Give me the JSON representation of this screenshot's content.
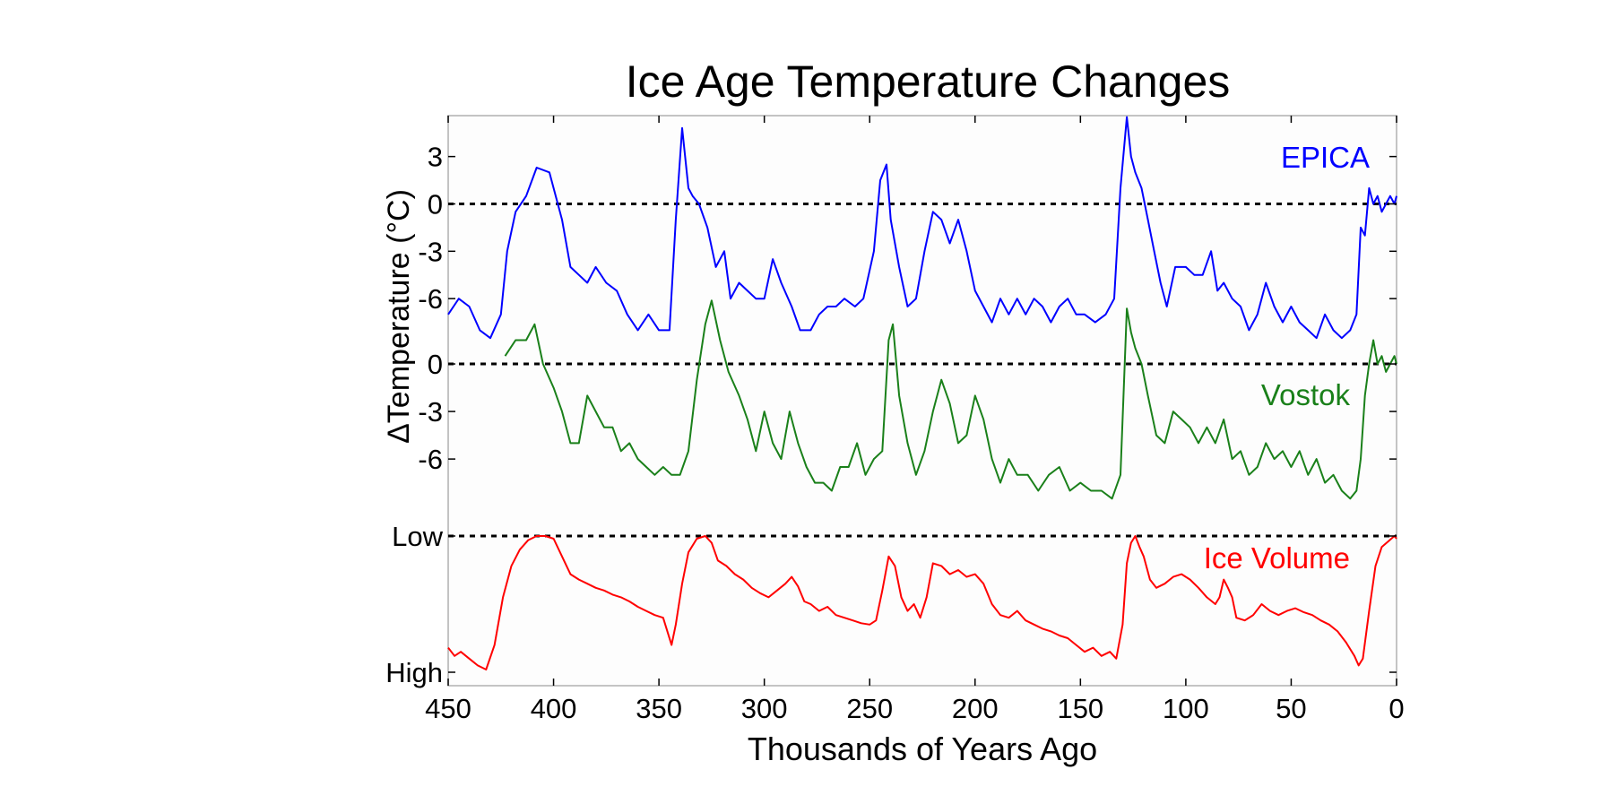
{
  "chart_data": {
    "type": "line",
    "title": "Ice Age Temperature Changes",
    "xlabel": "Thousands of Years Ago",
    "ylabel": "ΔTemperature (°C)",
    "xlim": [
      450,
      0
    ],
    "x_ticks": [
      450,
      400,
      350,
      300,
      250,
      200,
      150,
      100,
      50,
      0
    ],
    "panels": [
      {
        "name": "EPICA",
        "color": "#0000ff",
        "unit": "°C",
        "ylim": [
          -9,
          6.5
        ],
        "tick_values": [
          3,
          0,
          -3,
          -6
        ],
        "tick_labels": [
          "3",
          "0",
          "-3",
          "-6"
        ],
        "reference": 0,
        "x": [
          450,
          445,
          440,
          435,
          430,
          425,
          422,
          418,
          413,
          408,
          402,
          396,
          392,
          388,
          384,
          380,
          375,
          370,
          365,
          360,
          355,
          350,
          345,
          342,
          339,
          336,
          334,
          331,
          327,
          323,
          319,
          316,
          312,
          308,
          304,
          300,
          296,
          292,
          287,
          283,
          278,
          274,
          270,
          266,
          262,
          257,
          253,
          248,
          245,
          242,
          240,
          236,
          232,
          228,
          224,
          220,
          216,
          212,
          208,
          204,
          200,
          196,
          192,
          188,
          184,
          180,
          176,
          172,
          168,
          164,
          160,
          156,
          152,
          148,
          143,
          138,
          134,
          131,
          128,
          126,
          124,
          121,
          118,
          115,
          112,
          109,
          105,
          100,
          96,
          92,
          88,
          85,
          82,
          78,
          74,
          70,
          66,
          62,
          58,
          54,
          50,
          46,
          42,
          38,
          34,
          30,
          26,
          22,
          19,
          17,
          15,
          13,
          11,
          9,
          7,
          5,
          3,
          1,
          0
        ],
        "values": [
          -7,
          -6,
          -6.5,
          -8,
          -8.5,
          -7,
          -3,
          -0.5,
          0.5,
          2.3,
          2,
          -1,
          -4,
          -4.5,
          -5,
          -4,
          -5,
          -5.5,
          -7,
          -8,
          -7,
          -8,
          -8,
          -1,
          4.8,
          1,
          0.5,
          0,
          -1.5,
          -4,
          -3,
          -6,
          -5,
          -5.5,
          -6,
          -6,
          -3.5,
          -5,
          -6.5,
          -8,
          -8,
          -7,
          -6.5,
          -6.5,
          -6,
          -6.5,
          -6,
          -3,
          1.5,
          2.5,
          -1,
          -4,
          -6.5,
          -6,
          -3,
          -0.5,
          -1,
          -2.5,
          -1,
          -3,
          -5.5,
          -6.5,
          -7.5,
          -6,
          -7,
          -6,
          -7,
          -6,
          -6.5,
          -7.5,
          -6.5,
          -6,
          -7,
          -7,
          -7.5,
          -7,
          -6,
          1,
          5.5,
          3,
          2,
          1,
          -1,
          -3,
          -5,
          -6.5,
          -4,
          -4,
          -4.5,
          -4.5,
          -3,
          -5.5,
          -5,
          -6,
          -6.5,
          -8,
          -7,
          -5,
          -6.5,
          -7.5,
          -6.5,
          -7.5,
          -8,
          -8.5,
          -7,
          -8,
          -8.5,
          -8,
          -7,
          -1.5,
          -2,
          1,
          0,
          0.5,
          -0.5,
          0,
          0.5,
          0,
          0.5
        ]
      },
      {
        "name": "Vostok",
        "color": "#1a801a",
        "unit": "°C",
        "ylim": [
          -9.5,
          3
        ],
        "tick_values": [
          0,
          -3,
          -6
        ],
        "tick_labels": [
          "0",
          "-3",
          "-6"
        ],
        "reference": 0,
        "x": [
          423,
          418,
          413,
          409,
          405,
          400,
          396,
          392,
          388,
          384,
          380,
          376,
          372,
          368,
          364,
          360,
          356,
          352,
          348,
          344,
          340,
          336,
          332,
          328,
          325,
          321,
          317,
          312,
          308,
          304,
          300,
          296,
          292,
          288,
          284,
          280,
          276,
          272,
          268,
          264,
          260,
          256,
          252,
          248,
          244,
          241,
          239,
          236,
          232,
          228,
          224,
          220,
          216,
          212,
          208,
          204,
          200,
          196,
          192,
          188,
          184,
          180,
          175,
          170,
          165,
          160,
          155,
          150,
          145,
          140,
          135,
          131,
          128,
          126,
          124,
          121,
          118,
          114,
          110,
          106,
          102,
          98,
          94,
          90,
          86,
          82,
          78,
          74,
          70,
          66,
          62,
          58,
          54,
          50,
          46,
          42,
          38,
          34,
          30,
          26,
          22,
          19,
          17,
          15,
          13,
          11,
          9,
          7,
          5,
          3,
          1,
          0
        ],
        "values": [
          0.5,
          1.5,
          1.5,
          2.5,
          0,
          -1.5,
          -3,
          -5,
          -5,
          -2,
          -3,
          -4,
          -4,
          -5.5,
          -5,
          -6,
          -6.5,
          -7,
          -6.5,
          -7,
          -7,
          -5.5,
          -1,
          2.5,
          4,
          1.5,
          -0.5,
          -2,
          -3.5,
          -5.5,
          -3,
          -5,
          -6,
          -3,
          -5,
          -6.5,
          -7.5,
          -7.5,
          -8,
          -6.5,
          -6.5,
          -5,
          -7,
          -6,
          -5.5,
          1.5,
          2.5,
          -2,
          -5,
          -7,
          -5.5,
          -3,
          -1,
          -2.5,
          -5,
          -4.5,
          -2,
          -3.5,
          -6,
          -7.5,
          -6,
          -7,
          -7,
          -8,
          -7,
          -6.5,
          -8,
          -7.5,
          -8,
          -8,
          -8.5,
          -7,
          3.5,
          2,
          1,
          0,
          -2,
          -4.5,
          -5,
          -3,
          -3.5,
          -4,
          -5,
          -4,
          -5,
          -3.5,
          -6,
          -5.5,
          -7,
          -6.5,
          -5,
          -6,
          -5.5,
          -6.5,
          -5.5,
          -7,
          -6,
          -7.5,
          -7,
          -8,
          -8.5,
          -8,
          -6,
          -2,
          0,
          1.5,
          0,
          0.5,
          -0.5,
          0,
          0.5,
          0
        ]
      },
      {
        "name": "Ice Volume",
        "color": "#ff0000",
        "unit": "",
        "ylim": [
          0,
          1
        ],
        "tick_values": [
          1,
          0
        ],
        "tick_labels": [
          "Low",
          "High"
        ],
        "reference": 1,
        "x": [
          450,
          447,
          444,
          440,
          436,
          432,
          428,
          424,
          420,
          416,
          412,
          408,
          404,
          400,
          396,
          392,
          388,
          384,
          380,
          376,
          372,
          368,
          364,
          360,
          356,
          352,
          348,
          344,
          342,
          339,
          336,
          332,
          328,
          325,
          322,
          318,
          314,
          310,
          306,
          302,
          298,
          294,
          290,
          287,
          284,
          281,
          278,
          274,
          270,
          266,
          262,
          258,
          254,
          250,
          247,
          244,
          241,
          238,
          235,
          232,
          229,
          226,
          223,
          220,
          216,
          212,
          208,
          204,
          200,
          196,
          192,
          188,
          184,
          180,
          176,
          172,
          168,
          164,
          160,
          156,
          152,
          148,
          144,
          140,
          136,
          133,
          130,
          128,
          126,
          124,
          122,
          120,
          117,
          114,
          110,
          106,
          102,
          98,
          94,
          90,
          86,
          84,
          82,
          80,
          78,
          76,
          72,
          68,
          64,
          60,
          56,
          52,
          48,
          44,
          40,
          36,
          32,
          28,
          24,
          20,
          18,
          16,
          13,
          10,
          7,
          4,
          1,
          0
        ],
        "values": [
          0.18,
          0.12,
          0.15,
          0.1,
          0.05,
          0.02,
          0.2,
          0.55,
          0.78,
          0.9,
          0.97,
          1,
          1,
          0.98,
          0.85,
          0.72,
          0.68,
          0.65,
          0.62,
          0.6,
          0.57,
          0.55,
          0.52,
          0.48,
          0.45,
          0.42,
          0.4,
          0.2,
          0.35,
          0.65,
          0.88,
          0.98,
          1,
          0.95,
          0.82,
          0.78,
          0.72,
          0.68,
          0.62,
          0.58,
          0.55,
          0.6,
          0.65,
          0.7,
          0.63,
          0.52,
          0.5,
          0.45,
          0.48,
          0.42,
          0.4,
          0.38,
          0.36,
          0.35,
          0.38,
          0.6,
          0.85,
          0.78,
          0.55,
          0.45,
          0.5,
          0.4,
          0.55,
          0.8,
          0.78,
          0.72,
          0.75,
          0.7,
          0.72,
          0.65,
          0.5,
          0.42,
          0.4,
          0.45,
          0.38,
          0.35,
          0.32,
          0.3,
          0.27,
          0.25,
          0.2,
          0.15,
          0.18,
          0.12,
          0.15,
          0.1,
          0.35,
          0.8,
          0.95,
          1,
          0.92,
          0.85,
          0.68,
          0.62,
          0.65,
          0.7,
          0.72,
          0.68,
          0.62,
          0.55,
          0.5,
          0.55,
          0.68,
          0.62,
          0.55,
          0.4,
          0.38,
          0.42,
          0.5,
          0.45,
          0.42,
          0.45,
          0.47,
          0.44,
          0.42,
          0.38,
          0.35,
          0.3,
          0.22,
          0.12,
          0.05,
          0.1,
          0.45,
          0.78,
          0.92,
          0.96,
          1,
          0.98
        ]
      }
    ],
    "ylabel_extra": "",
    "grid": false,
    "legend": "series labels placed inside plot near right edge"
  }
}
